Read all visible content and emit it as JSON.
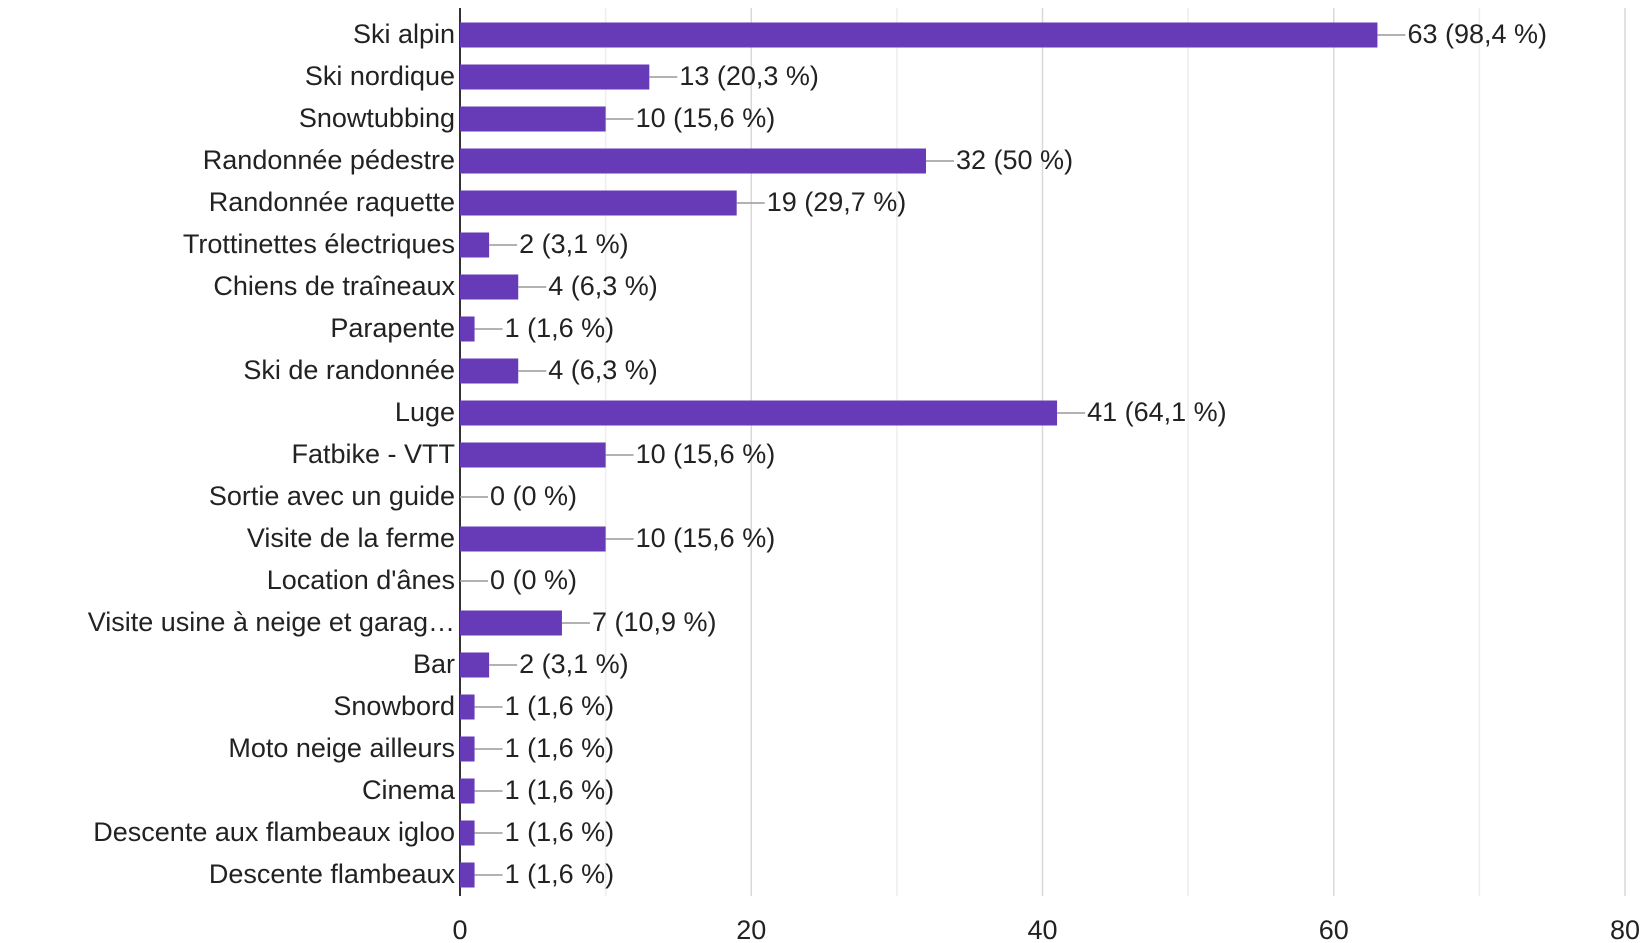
{
  "chart_data": {
    "type": "barh",
    "categories": [
      "Ski alpin",
      "Ski nordique",
      "Snowtubbing",
      "Randonnée pédestre",
      "Randonnée raquette",
      "Trottinettes électriques",
      "Chiens de traîneaux",
      "Parapente",
      "Ski de randonnée",
      "Luge",
      "Fatbike - VTT",
      "Sortie avec un guide",
      "Visite de la ferme",
      "Location d'ânes",
      "Visite usine à neige et garag…",
      "Bar",
      "Snowbord",
      "Moto neige ailleurs",
      "Cinema",
      "Descente aux flambeaux igloo",
      "Descente flambeaux"
    ],
    "values": [
      63,
      13,
      10,
      32,
      19,
      2,
      4,
      1,
      4,
      41,
      10,
      0,
      10,
      0,
      7,
      2,
      1,
      1,
      1,
      1,
      1
    ],
    "value_labels": [
      "63 (98,4 %)",
      "13 (20,3 %)",
      "10 (15,6 %)",
      "32 (50 %)",
      "19 (29,7 %)",
      "2 (3,1 %)",
      "4 (6,3 %)",
      "1 (1,6 %)",
      "4 (6,3 %)",
      "41 (64,1 %)",
      "10 (15,6 %)",
      "0 (0 %)",
      "10 (15,6 %)",
      "0 (0 %)",
      "7 (10,9 %)",
      "2 (3,1 %)",
      "1 (1,6 %)",
      "1 (1,6 %)",
      "1 (1,6 %)",
      "1 (1,6 %)",
      "1 (1,6 %)"
    ],
    "color": "#673ab7",
    "xlim": [
      0,
      80
    ],
    "xticks": [
      0,
      20,
      40,
      60,
      80
    ],
    "xminor": [
      10,
      30,
      50,
      70
    ],
    "grid": true
  }
}
